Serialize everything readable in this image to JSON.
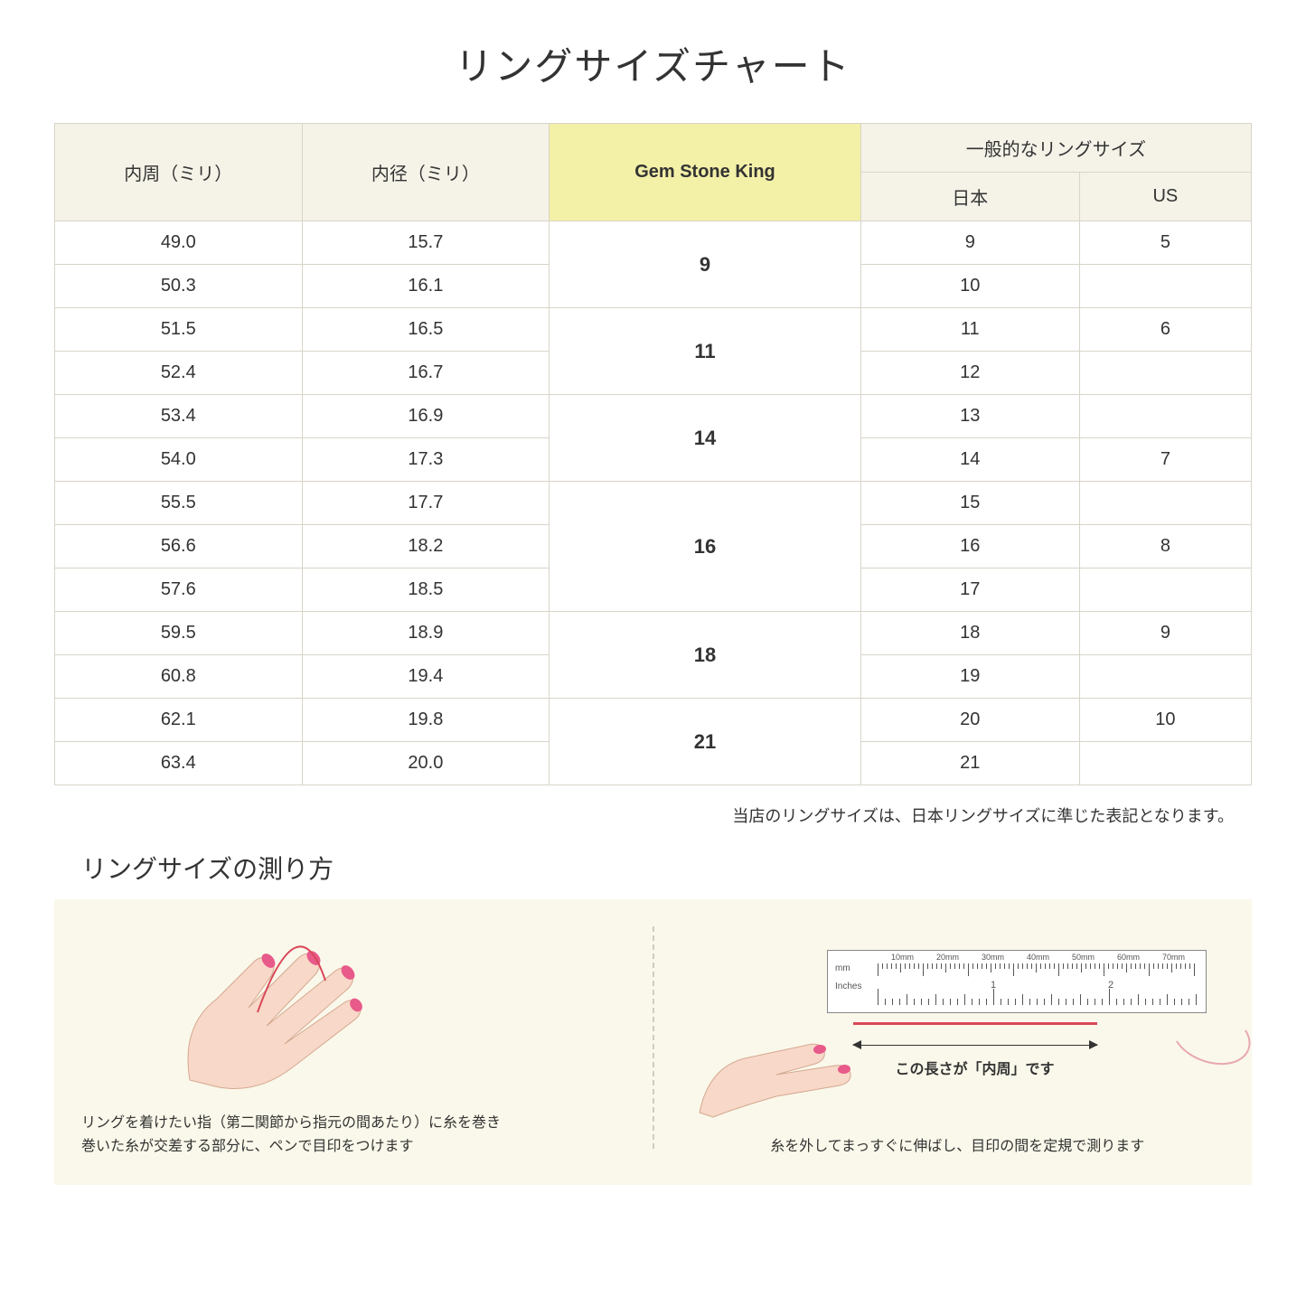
{
  "title": "リングサイズチャート",
  "headers": {
    "circumference": "内周（ミリ）",
    "diameter": "内径（ミリ）",
    "gsk": "Gem Stone King",
    "general": "一般的なリングサイズ",
    "japan": "日本",
    "us": "US"
  },
  "groups": [
    {
      "gsk": "9",
      "rows": [
        {
          "c": "49.0",
          "d": "15.7",
          "jp": "9",
          "us": "5"
        },
        {
          "c": "50.3",
          "d": "16.1",
          "jp": "10",
          "us": ""
        }
      ]
    },
    {
      "gsk": "11",
      "rows": [
        {
          "c": "51.5",
          "d": "16.5",
          "jp": "11",
          "us": "6"
        },
        {
          "c": "52.4",
          "d": "16.7",
          "jp": "12",
          "us": ""
        }
      ]
    },
    {
      "gsk": "14",
      "rows": [
        {
          "c": "53.4",
          "d": "16.9",
          "jp": "13",
          "us": ""
        },
        {
          "c": "54.0",
          "d": "17.3",
          "jp": "14",
          "us": "7"
        }
      ]
    },
    {
      "gsk": "16",
      "rows": [
        {
          "c": "55.5",
          "d": "17.7",
          "jp": "15",
          "us": ""
        },
        {
          "c": "56.6",
          "d": "18.2",
          "jp": "16",
          "us": "8"
        },
        {
          "c": "57.6",
          "d": "18.5",
          "jp": "17",
          "us": ""
        }
      ]
    },
    {
      "gsk": "18",
      "rows": [
        {
          "c": "59.5",
          "d": "18.9",
          "jp": "18",
          "us": "9"
        },
        {
          "c": "60.8",
          "d": "19.4",
          "jp": "19",
          "us": ""
        }
      ]
    },
    {
      "gsk": "21",
      "rows": [
        {
          "c": "62.1",
          "d": "19.8",
          "jp": "20",
          "us": "10"
        },
        {
          "c": "63.4",
          "d": "20.0",
          "jp": "21",
          "us": ""
        }
      ]
    }
  ],
  "note": "当店のリングサイズは、日本リングサイズに準じた表記となります。",
  "subtitle": "リングサイズの測り方",
  "instruction_left": "リングを着けたい指（第二関節から指元の間あたり）に糸を巻き\n巻いた糸が交差する部分に、ペンで目印をつけます",
  "instruction_right": "糸を外してまっすぐに伸ばし、目印の間を定規で測ります",
  "arrow_label": "この長さが「内周」です",
  "ruler": {
    "mm_label": "mm",
    "in_label": "Inches",
    "mm_marks": [
      "10mm",
      "20mm",
      "30mm",
      "40mm",
      "50mm",
      "60mm",
      "70mm"
    ],
    "in_marks": [
      "1",
      "2"
    ]
  },
  "colors": {
    "header_bg": "#f5f3e8",
    "highlight_bg": "#f3f0a8",
    "border": "#d8d4c8",
    "panel_bg": "#faf8ea",
    "red": "#d94858",
    "skin": "#f8d8c8",
    "nail": "#e85a8a"
  }
}
